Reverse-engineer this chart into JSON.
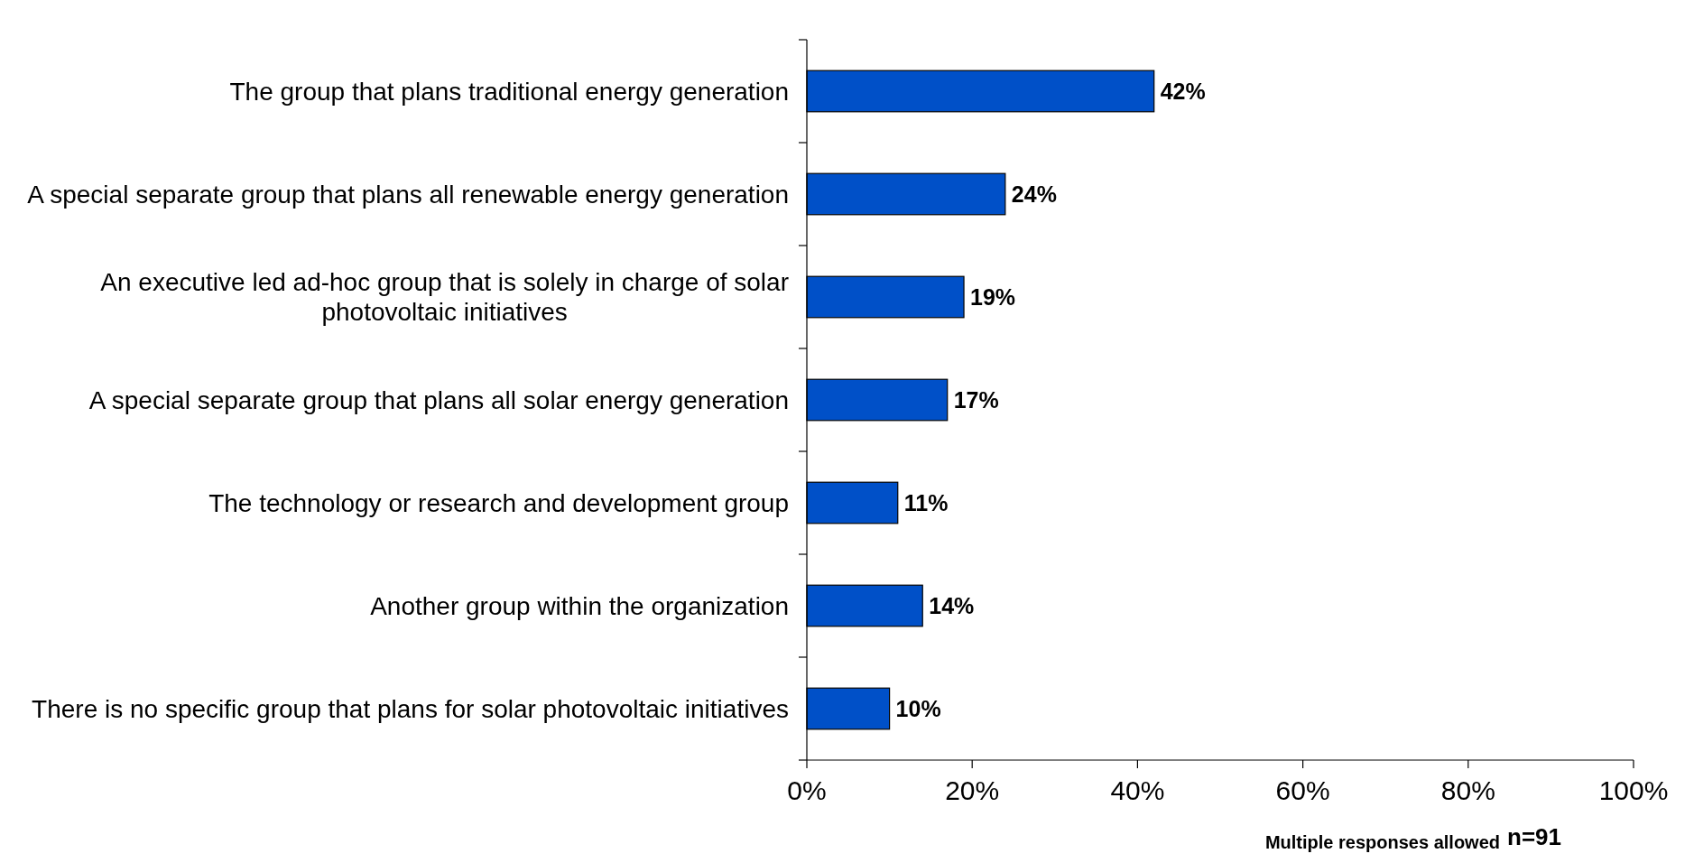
{
  "chart_data": {
    "type": "bar",
    "orientation": "horizontal",
    "categories": [
      "The group that plans traditional energy generation",
      "A special separate group that plans all renewable energy generation",
      "An executive led ad-hoc group that is solely in charge of solar photovoltaic initiatives",
      "A special separate group that plans all solar energy generation",
      "The technology or research and development group",
      "Another group within the organization",
      "There is no specific group that plans for solar photovoltaic initiatives"
    ],
    "values": [
      42,
      24,
      19,
      17,
      11,
      14,
      10
    ],
    "color": "#0050c8",
    "xlim": [
      0,
      100
    ],
    "xticks": [
      {
        "value": 0,
        "label": "0%"
      },
      {
        "value": 20,
        "label": "20%"
      },
      {
        "value": 40,
        "label": "40%"
      },
      {
        "value": 60,
        "label": "60%"
      },
      {
        "value": 80,
        "label": "80%"
      },
      {
        "value": 100,
        "label": "100%"
      }
    ],
    "value_labels": [
      "42%",
      "24%",
      "19%",
      "17%",
      "11%",
      "14%",
      "10%"
    ],
    "annotations": [
      "Multiple responses allowed",
      "n=91"
    ]
  }
}
